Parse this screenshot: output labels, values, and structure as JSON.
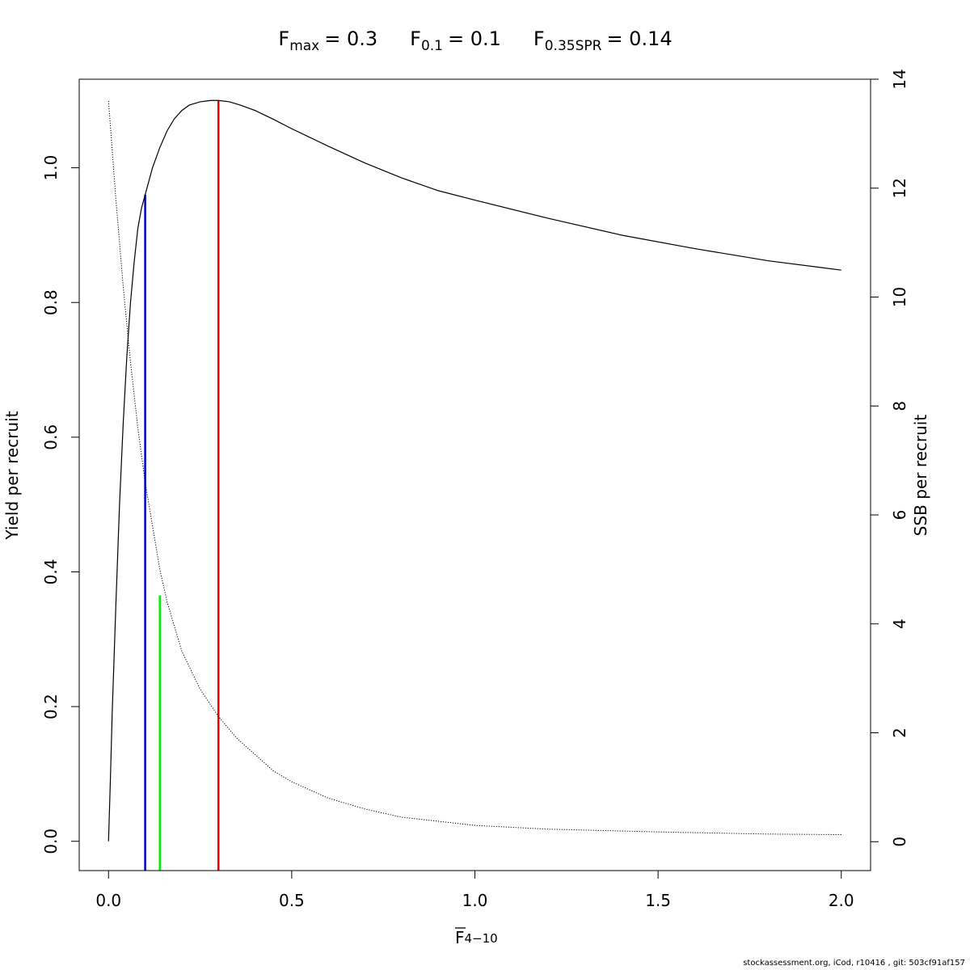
{
  "chart_data": {
    "type": "line",
    "title_parts": [
      {
        "main": "F",
        "sub": "max",
        "value": "= 0.3"
      },
      {
        "main": "F",
        "sub": "0.1",
        "value": "= 0.1"
      },
      {
        "main": "F",
        "sub": "0.35SPR",
        "value": "= 0.14"
      }
    ],
    "xlabel": {
      "main": "F",
      "sub": "4−10"
    },
    "ylabel_left": "Yield per recruit",
    "ylabel_right": "SSB per recruit",
    "xlim": [
      -0.08,
      2.08
    ],
    "ylim_left": [
      -0.0435,
      1.1315
    ],
    "ylim_right": [
      -0.53,
      14.0
    ],
    "x_ticks": [
      0,
      0.5,
      1,
      1.5,
      2
    ],
    "x_tick_labels": [
      "0.0",
      "0.5",
      "1.0",
      "1.5",
      "2.0"
    ],
    "yl_ticks": [
      0,
      0.2,
      0.4,
      0.6,
      0.8,
      1.0
    ],
    "yl_tick_labels": [
      "0.0",
      "0.2",
      "0.4",
      "0.6",
      "0.8",
      "1.0"
    ],
    "yr_ticks": [
      0,
      2,
      4,
      6,
      8,
      10,
      12,
      14
    ],
    "yr_tick_labels": [
      "0",
      "2",
      "4",
      "6",
      "8",
      "10",
      "12",
      "14"
    ],
    "series": [
      {
        "style": "solid",
        "axis": "left",
        "color": "#000000",
        "x": [
          0,
          0.005,
          0.01,
          0.02,
          0.03,
          0.04,
          0.05,
          0.06,
          0.07,
          0.08,
          0.09,
          0.1,
          0.12,
          0.14,
          0.16,
          0.18,
          0.2,
          0.22,
          0.25,
          0.28,
          0.3,
          0.33,
          0.36,
          0.4,
          0.45,
          0.5,
          0.6,
          0.7,
          0.8,
          0.9,
          1.0,
          1.2,
          1.4,
          1.6,
          1.8,
          2.0
        ],
        "y": [
          0.0,
          0.09,
          0.19,
          0.35,
          0.5,
          0.62,
          0.72,
          0.8,
          0.86,
          0.91,
          0.94,
          0.96,
          1.0,
          1.03,
          1.055,
          1.073,
          1.085,
          1.093,
          1.098,
          1.1,
          1.1,
          1.098,
          1.093,
          1.085,
          1.072,
          1.058,
          1.032,
          1.007,
          0.985,
          0.966,
          0.952,
          0.925,
          0.9,
          0.88,
          0.862,
          0.848
        ]
      },
      {
        "style": "dotted",
        "axis": "right",
        "color": "#000000",
        "x": [
          0,
          0.02,
          0.04,
          0.06,
          0.08,
          0.1,
          0.12,
          0.14,
          0.16,
          0.2,
          0.25,
          0.3,
          0.35,
          0.4,
          0.45,
          0.5,
          0.6,
          0.7,
          0.8,
          1.0,
          1.2,
          1.5,
          1.8,
          2.0
        ],
        "y": [
          13.6,
          11.8,
          10.2,
          8.8,
          7.6,
          6.6,
          5.8,
          5.0,
          4.4,
          3.5,
          2.8,
          2.3,
          1.9,
          1.6,
          1.3,
          1.1,
          0.8,
          0.6,
          0.45,
          0.3,
          0.23,
          0.18,
          0.14,
          0.13
        ]
      }
    ],
    "reference_lines": [
      {
        "x": 0.1,
        "y_top": 0.96,
        "color": "#0000cc"
      },
      {
        "x": 0.14,
        "y_top": 0.365,
        "color": "#00ee00"
      },
      {
        "x": 0.3,
        "y_top": 1.1,
        "color": "#ee0000"
      }
    ]
  },
  "footer": "stockassessment.org, iCod, r10416 , git: 503cf91af157"
}
